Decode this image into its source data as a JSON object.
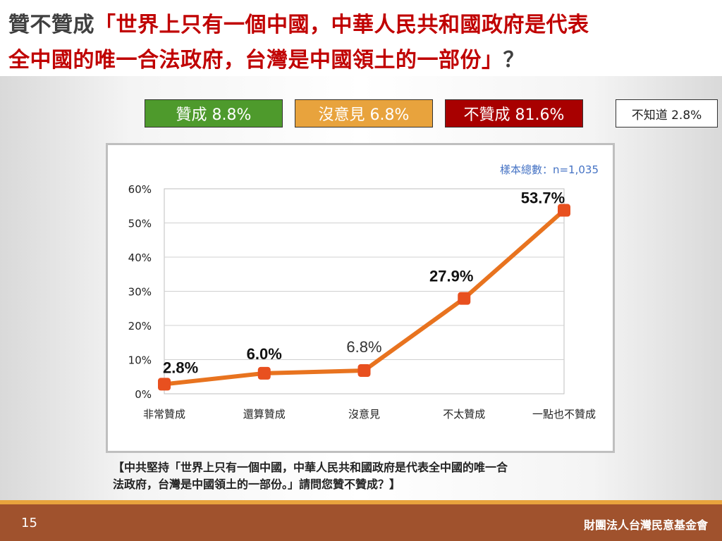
{
  "title": {
    "line1_prefix": "贊不贊成",
    "line1_quote": "「世界上只有一個中國，中華人民共和國政府是代表",
    "line2_quote": "全中國的唯一合法政府，台灣是中國領土的一部份」",
    "line2_suffix": "？"
  },
  "legend": [
    {
      "label": "贊成 8.8%",
      "bg": "#4e9a2c",
      "fg": "#ffffff"
    },
    {
      "label": "沒意見 6.8%",
      "bg": "#e8a33d",
      "fg": "#ffffff"
    },
    {
      "label": "不贊成 81.6%",
      "bg": "#a80000",
      "fg": "#ffffff"
    },
    {
      "label": "不知道 2.8%",
      "bg": "#ffffff",
      "fg": "#222222"
    }
  ],
  "sample_size": "樣本總數：n=1,035",
  "chart_data": {
    "type": "line",
    "categories": [
      "非常贊成",
      "還算贊成",
      "沒意見",
      "不太贊成",
      "一點也不贊成"
    ],
    "values": [
      2.8,
      6.0,
      6.8,
      27.9,
      53.7
    ],
    "value_labels": [
      "2.8%",
      "6.0%",
      "6.8%",
      "27.9%",
      "53.7%"
    ],
    "y_ticks": [
      "0%",
      "10%",
      "20%",
      "30%",
      "40%",
      "50%",
      "60%"
    ],
    "ylim": [
      0,
      60
    ],
    "grid": true,
    "line_color": "#e8731f",
    "marker_color": "#e8501f"
  },
  "question": {
    "line1": "【中共堅持「世界上只有一個中國，中華人民共和國政府是代表全中國的唯一合",
    "line2": "法政府，台灣是中國領土的一部份。」請問您贊不贊成？】"
  },
  "footer": {
    "page_number": "15",
    "organization": "財團法人台灣民意基金會"
  }
}
